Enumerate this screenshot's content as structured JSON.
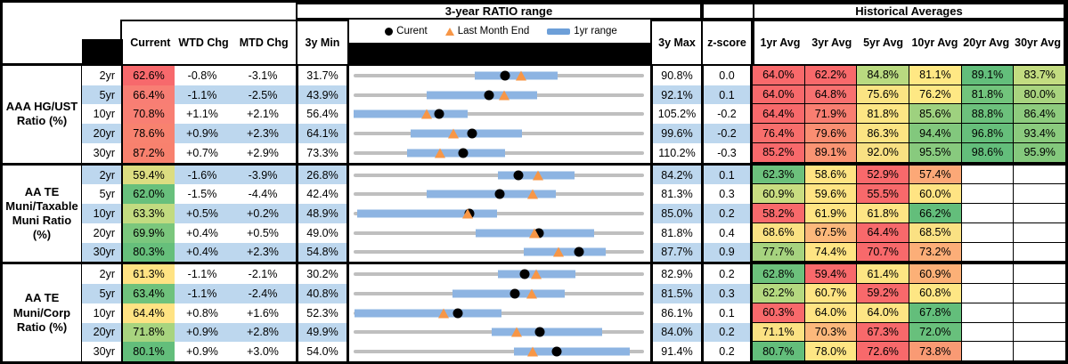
{
  "titles": {
    "chart_section": "3-year RATIO range",
    "historical_section": "Historical Averages"
  },
  "legend": {
    "current": "Curent",
    "last_month": "Last Month End",
    "range_1yr": "1yr range"
  },
  "col_headers": {
    "current": "Current",
    "wtd": "WTD Chg",
    "mtd": "MTD Chg",
    "min": "3y Min",
    "max": "3y Max",
    "z": "z-score"
  },
  "avg_headers": [
    "1yr Avg",
    "3yr Avg",
    "5yr Avg",
    "10yr Avg",
    "20yr Avg",
    "30yr Avg"
  ],
  "colors": {
    "stripe_blue": "#BDD7EE",
    "range_bar_blue": "#8DB4E2",
    "track_gray": "#BFBFBF",
    "marker_orange": "#F79646",
    "marker_black": "#000000",
    "heat_red": "#F8696B",
    "heat_yellow": "#FFE483",
    "heat_green": "#63BE7B"
  },
  "chart_data": {
    "type": "table",
    "title": "3-year RATIO range",
    "legend": [
      "Curent",
      "Last Month End",
      "1yr range"
    ],
    "note": "Embedded range plot per row: gray track = 3y min..max, blue bar = 1yr range, black dot = current, orange triangle = last month end. All values are percents.",
    "groups": [
      {
        "label": "AAA HG/UST Ratio (%)",
        "rows": [
          {
            "tenor": "2yr",
            "current_pct": 62.6,
            "current_color": "#F7696C",
            "wtd_chg_pct": -0.8,
            "mtd_chg_pct": -3.1,
            "min_3y_pct": 31.7,
            "max_3y_pct": 90.8,
            "z_score": 0.0,
            "range_1yr_lo_pct": 56.3,
            "range_1yr_hi_pct": 73.3,
            "last_month_end_pct": 65.7,
            "avgs_pct": {
              "1yr": 64.0,
              "3yr": 62.2,
              "5yr": 84.8,
              "10yr": 81.1,
              "20yr": 89.1,
              "30yr": 83.7
            },
            "avg_colors": [
              "#F8696B",
              "#F8696B",
              "#B9DA80",
              "#FFE884",
              "#63BE7B",
              "#C3DC81"
            ]
          },
          {
            "tenor": "5yr",
            "current_pct": 66.4,
            "current_color": "#F87E74",
            "wtd_chg_pct": -1.1,
            "mtd_chg_pct": -2.5,
            "min_3y_pct": 43.9,
            "max_3y_pct": 92.1,
            "z_score": 0.1,
            "range_1yr_lo_pct": 56.0,
            "range_1yr_hi_pct": 74.3,
            "last_month_end_pct": 68.9,
            "avgs_pct": {
              "1yr": 64.0,
              "3yr": 64.8,
              "5yr": 75.6,
              "10yr": 76.2,
              "20yr": 81.8,
              "30yr": 80.0
            },
            "avg_colors": [
              "#F8696B",
              "#F87170",
              "#FBE483",
              "#FEE884",
              "#72C47C",
              "#A9D47F"
            ]
          },
          {
            "tenor": "10yr",
            "current_pct": 70.8,
            "current_color": "#F87F73",
            "wtd_chg_pct": 1.1,
            "mtd_chg_pct": 2.1,
            "min_3y_pct": 56.4,
            "max_3y_pct": 105.2,
            "z_score": -0.2,
            "range_1yr_lo_pct": 56.4,
            "range_1yr_hi_pct": 75.6,
            "last_month_end_pct": 68.7,
            "avgs_pct": {
              "1yr": 64.4,
              "3yr": 71.9,
              "5yr": 81.8,
              "10yr": 85.6,
              "20yr": 88.8,
              "30yr": 86.4
            },
            "avg_colors": [
              "#F8696B",
              "#F97E71",
              "#FDE684",
              "#9ED17F",
              "#6CC17C",
              "#8ECC7E"
            ]
          },
          {
            "tenor": "20yr",
            "current_pct": 78.6,
            "current_color": "#F8826F",
            "wtd_chg_pct": 0.9,
            "mtd_chg_pct": 2.3,
            "min_3y_pct": 64.1,
            "max_3y_pct": 99.6,
            "z_score": -0.2,
            "range_1yr_lo_pct": 71.1,
            "range_1yr_hi_pct": 84.7,
            "last_month_end_pct": 76.3,
            "avgs_pct": {
              "1yr": 76.4,
              "3yr": 79.6,
              "5yr": 86.3,
              "10yr": 94.4,
              "20yr": 96.8,
              "30yr": 93.4
            },
            "avg_colors": [
              "#F86E6C",
              "#FA8E72",
              "#FCE483",
              "#82C87D",
              "#66BF7B",
              "#8BCB7E"
            ]
          },
          {
            "tenor": "30yr",
            "current_pct": 87.2,
            "current_color": "#F8816E",
            "wtd_chg_pct": 0.7,
            "mtd_chg_pct": 2.9,
            "min_3y_pct": 73.3,
            "max_3y_pct": 110.2,
            "z_score": -0.3,
            "range_1yr_lo_pct": 80.1,
            "range_1yr_hi_pct": 92.5,
            "last_month_end_pct": 84.3,
            "avgs_pct": {
              "1yr": 85.2,
              "3yr": 89.1,
              "5yr": 92.0,
              "10yr": 95.5,
              "20yr": 98.6,
              "30yr": 95.9
            },
            "avg_colors": [
              "#F8696B",
              "#FA9473",
              "#F9E183",
              "#88CA7E",
              "#63BE7B",
              "#84C97D"
            ]
          }
        ]
      },
      {
        "label": "AA TE Muni/Taxable Muni Ratio (%)",
        "rows": [
          {
            "tenor": "2yr",
            "current_pct": 59.4,
            "current_color": "#DCDD81",
            "wtd_chg_pct": -1.6,
            "mtd_chg_pct": -3.9,
            "min_3y_pct": 26.8,
            "max_3y_pct": 84.2,
            "z_score": 0.1,
            "range_1yr_lo_pct": 55.4,
            "range_1yr_hi_pct": 70.4,
            "last_month_end_pct": 63.3,
            "avgs_pct": {
              "1yr": 62.3,
              "3yr": 58.6,
              "5yr": 52.9,
              "10yr": 57.4,
              "20yr": null,
              "30yr": null
            },
            "avg_colors": [
              "#6CC17C",
              "#FFE483",
              "#F8696B",
              "#FCA877",
              null,
              null
            ]
          },
          {
            "tenor": "5yr",
            "current_pct": 62.0,
            "current_color": "#68C07C",
            "wtd_chg_pct": -1.5,
            "mtd_chg_pct": -4.4,
            "min_3y_pct": 42.4,
            "max_3y_pct": 81.3,
            "z_score": 0.3,
            "range_1yr_lo_pct": 52.2,
            "range_1yr_hi_pct": 69.5,
            "last_month_end_pct": 66.4,
            "avgs_pct": {
              "1yr": 60.9,
              "3yr": 59.6,
              "5yr": 55.5,
              "10yr": 60.0,
              "20yr": null,
              "30yr": null
            },
            "avg_colors": [
              "#C9DD81",
              "#FFE483",
              "#F8696B",
              "#FFE483",
              null,
              null
            ]
          },
          {
            "tenor": "10yr",
            "current_pct": 63.3,
            "current_color": "#C2DB80",
            "wtd_chg_pct": 0.5,
            "mtd_chg_pct": 0.2,
            "min_3y_pct": 48.9,
            "max_3y_pct": 85.0,
            "z_score": 0.2,
            "range_1yr_lo_pct": 49.3,
            "range_1yr_hi_pct": 66.7,
            "last_month_end_pct": 63.1,
            "avgs_pct": {
              "1yr": 58.2,
              "3yr": 61.9,
              "5yr": 61.8,
              "10yr": 66.2,
              "20yr": null,
              "30yr": null
            },
            "avg_colors": [
              "#F8696B",
              "#FFE483",
              "#FEE584",
              "#63BE7B",
              null,
              null
            ]
          },
          {
            "tenor": "20yr",
            "current_pct": 69.9,
            "current_color": "#7BC77D",
            "wtd_chg_pct": 0.4,
            "mtd_chg_pct": 0.5,
            "min_3y_pct": 49.0,
            "max_3y_pct": 81.8,
            "z_score": 0.4,
            "range_1yr_lo_pct": 62.8,
            "range_1yr_hi_pct": 76.2,
            "last_month_end_pct": 69.4,
            "avgs_pct": {
              "1yr": 68.6,
              "3yr": 67.5,
              "5yr": 64.4,
              "10yr": 68.5,
              "20yr": null,
              "30yr": null
            },
            "avg_colors": [
              "#FBE283",
              "#FCB87B",
              "#F8696B",
              "#FAE183",
              null,
              null
            ]
          },
          {
            "tenor": "30yr",
            "current_pct": 80.3,
            "current_color": "#66BF7B",
            "wtd_chg_pct": 0.4,
            "mtd_chg_pct": 2.3,
            "min_3y_pct": 54.8,
            "max_3y_pct": 87.7,
            "z_score": 0.9,
            "range_1yr_lo_pct": 74.1,
            "range_1yr_hi_pct": 83.4,
            "last_month_end_pct": 78.0,
            "avgs_pct": {
              "1yr": 77.7,
              "3yr": 74.4,
              "5yr": 70.7,
              "10yr": 73.2,
              "20yr": null,
              "30yr": null
            },
            "avg_colors": [
              "#A6D37F",
              "#FFE483",
              "#F8696B",
              "#FCAE78",
              null,
              null
            ]
          }
        ]
      },
      {
        "label": "AA TE Muni/Corp Ratio (%)",
        "rows": [
          {
            "tenor": "2yr",
            "current_pct": 61.3,
            "current_color": "#FFE383",
            "wtd_chg_pct": -1.1,
            "mtd_chg_pct": -2.1,
            "min_3y_pct": 30.2,
            "max_3y_pct": 82.9,
            "z_score": 0.2,
            "range_1yr_lo_pct": 56.4,
            "range_1yr_hi_pct": 70.5,
            "last_month_end_pct": 63.4,
            "avgs_pct": {
              "1yr": 62.8,
              "3yr": 59.4,
              "5yr": 61.4,
              "10yr": 60.9,
              "20yr": null,
              "30yr": null
            },
            "avg_colors": [
              "#6CC17C",
              "#F8696B",
              "#FDE583",
              "#FCB077",
              null,
              null
            ]
          },
          {
            "tenor": "5yr",
            "current_pct": 63.4,
            "current_color": "#6FC27C",
            "wtd_chg_pct": -1.1,
            "mtd_chg_pct": -2.4,
            "min_3y_pct": 40.8,
            "max_3y_pct": 81.5,
            "z_score": 0.3,
            "range_1yr_lo_pct": 54.7,
            "range_1yr_hi_pct": 70.4,
            "last_month_end_pct": 65.8,
            "avgs_pct": {
              "1yr": 62.2,
              "3yr": 60.7,
              "5yr": 59.2,
              "10yr": 60.8,
              "20yr": null,
              "30yr": null
            },
            "avg_colors": [
              "#B5D980",
              "#FFE483",
              "#F8696B",
              "#FEE684",
              null,
              null
            ]
          },
          {
            "tenor": "10yr",
            "current_pct": 64.4,
            "current_color": "#FFE383",
            "wtd_chg_pct": 0.8,
            "mtd_chg_pct": 1.6,
            "min_3y_pct": 52.3,
            "max_3y_pct": 86.1,
            "z_score": 0.1,
            "range_1yr_lo_pct": 52.4,
            "range_1yr_hi_pct": 69.5,
            "last_month_end_pct": 62.8,
            "avgs_pct": {
              "1yr": 60.3,
              "3yr": 64.0,
              "5yr": 64.0,
              "10yr": 67.8,
              "20yr": null,
              "30yr": null
            },
            "avg_colors": [
              "#F8696B",
              "#FFE483",
              "#FEE584",
              "#63BE7B",
              null,
              null
            ]
          },
          {
            "tenor": "20yr",
            "current_pct": 71.8,
            "current_color": "#A8D47F",
            "wtd_chg_pct": 0.9,
            "mtd_chg_pct": 2.8,
            "min_3y_pct": 49.9,
            "max_3y_pct": 84.0,
            "z_score": 0.2,
            "range_1yr_lo_pct": 66.1,
            "range_1yr_hi_pct": 79.1,
            "last_month_end_pct": 69.0,
            "avgs_pct": {
              "1yr": 71.1,
              "3yr": 70.3,
              "5yr": 67.3,
              "10yr": 72.0,
              "20yr": null,
              "30yr": null
            },
            "avg_colors": [
              "#FBE283",
              "#FCB87B",
              "#F8696B",
              "#68C07C",
              null,
              null
            ]
          },
          {
            "tenor": "30yr",
            "current_pct": 80.1,
            "current_color": "#63BE7B",
            "wtd_chg_pct": 0.9,
            "mtd_chg_pct": 3.0,
            "min_3y_pct": 54.0,
            "max_3y_pct": 91.4,
            "z_score": 0.2,
            "range_1yr_lo_pct": 74.6,
            "range_1yr_hi_pct": 89.6,
            "last_month_end_pct": 77.1,
            "avgs_pct": {
              "1yr": 80.7,
              "3yr": 78.0,
              "5yr": 72.6,
              "10yr": 73.8,
              "20yr": null,
              "30yr": null
            },
            "avg_colors": [
              "#63BE7B",
              "#FEE684",
              "#F8696B",
              "#F99A74",
              null,
              null
            ]
          }
        ]
      }
    ]
  }
}
